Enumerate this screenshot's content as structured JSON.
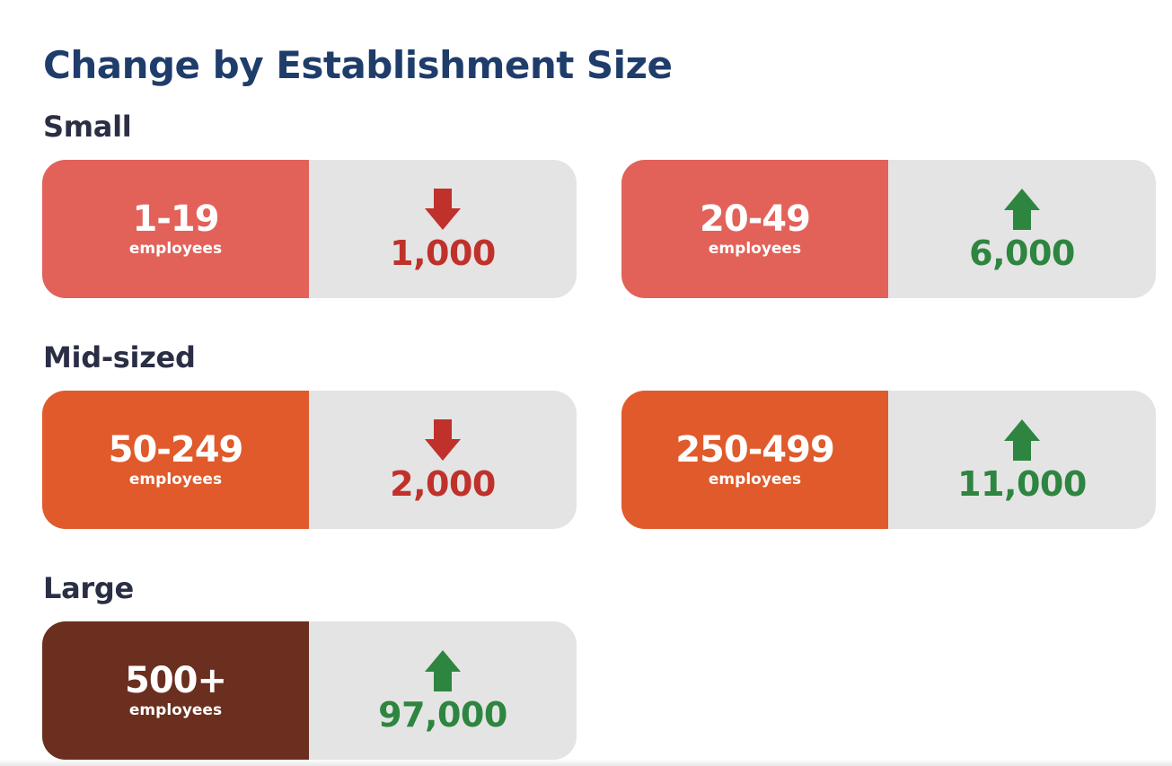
{
  "title": "Change by Establishment Size",
  "colors": {
    "small": "#e2625a",
    "mid": "#e05a2b",
    "large": "#6b2f1f",
    "up": "#2e8540",
    "down": "#c0312b",
    "panel": "#e4e4e4"
  },
  "groups": [
    {
      "label": "Small",
      "cards": [
        {
          "range": "1-19",
          "unit": "employees",
          "direction": "down",
          "direction_icon": "arrow-down-icon",
          "value": "1,000"
        },
        {
          "range": "20-49",
          "unit": "employees",
          "direction": "up",
          "direction_icon": "arrow-up-icon",
          "value": "6,000"
        }
      ]
    },
    {
      "label": "Mid-sized",
      "cards": [
        {
          "range": "50-249",
          "unit": "employees",
          "direction": "down",
          "direction_icon": "arrow-down-icon",
          "value": "2,000"
        },
        {
          "range": "250-499",
          "unit": "employees",
          "direction": "up",
          "direction_icon": "arrow-up-icon",
          "value": "11,000"
        }
      ]
    },
    {
      "label": "Large",
      "cards": [
        {
          "range": "500+",
          "unit": "employees",
          "direction": "up",
          "direction_icon": "arrow-up-icon",
          "value": "97,000"
        }
      ]
    }
  ]
}
